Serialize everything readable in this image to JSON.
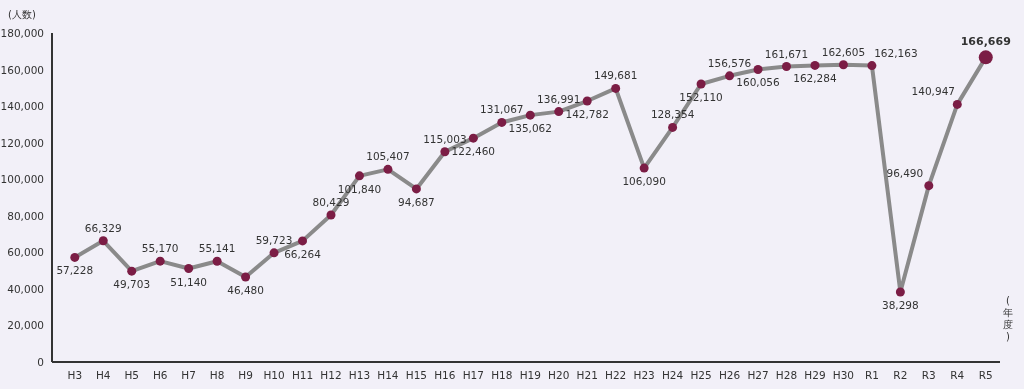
{
  "chart_data": {
    "type": "line",
    "ylabel": "(人数)",
    "xlabel": "(年度)",
    "categories": [
      "H3",
      "H4",
      "H5",
      "H6",
      "H7",
      "H8",
      "H9",
      "H10",
      "H11",
      "H12",
      "H13",
      "H14",
      "H15",
      "H16",
      "H17",
      "H18",
      "H19",
      "H20",
      "H21",
      "H22",
      "H23",
      "H24",
      "H25",
      "H26",
      "H27",
      "H28",
      "H29",
      "H30",
      "R1",
      "R2",
      "R3",
      "R4",
      "R5"
    ],
    "series": [
      {
        "color": "#7b1d45",
        "values": [
          57228,
          66329,
          49703,
          55170,
          51140,
          55141,
          46480,
          59723,
          66264,
          80429,
          101840,
          105407,
          94687,
          115003,
          122460,
          131067,
          135062,
          136991,
          142782,
          149681,
          106090,
          128354,
          152110,
          156576,
          160056,
          161671,
          162284,
          162605,
          162163,
          38298,
          96490,
          140947,
          166669
        ],
        "value_labels": [
          "57,228",
          "66,329",
          "49,703",
          "55,170",
          "51,140",
          "55,141",
          "46,480",
          "59,723",
          "66,264",
          "80,429",
          "101,840",
          "105,407",
          "94,687",
          "115,003",
          "122,460",
          "131,067",
          "135,062",
          "136,991",
          "142,782",
          "149,681",
          "106,090",
          "128,354",
          "152,110",
          "156,576",
          "160,056",
          "161,671",
          "162,284",
          "162,605",
          "162,163",
          "38,298",
          "96,490",
          "140,947",
          "166,669"
        ]
      }
    ],
    "ylim": [
      0,
      180000
    ],
    "yticks": [
      {
        "value": 0,
        "label": "0"
      },
      {
        "value": 20000,
        "label": "20,000"
      },
      {
        "value": 40000,
        "label": "40,000"
      },
      {
        "value": 60000,
        "label": "60,000"
      },
      {
        "value": 80000,
        "label": "80,000"
      },
      {
        "value": 100000,
        "label": "100,000"
      },
      {
        "value": 120000,
        "label": "120,000"
      },
      {
        "value": 140000,
        "label": "140,000"
      },
      {
        "value": 160000,
        "label": "160,000"
      },
      {
        "value": 180000,
        "label": "180,000"
      }
    ],
    "marker": "circle",
    "grid": false
  }
}
